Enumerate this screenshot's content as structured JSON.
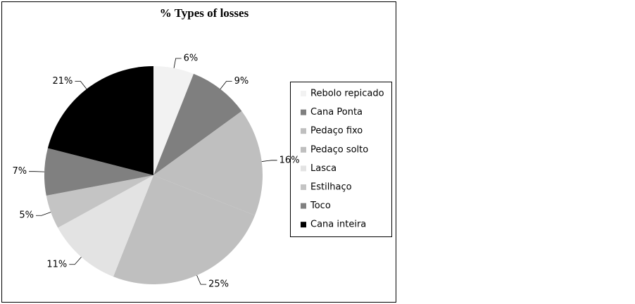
{
  "chart_data": {
    "type": "pie",
    "title": "% Types of losses",
    "categories": [
      "Rebolo repicado",
      "Cana Ponta",
      "Pedaço fixo",
      "Pedaço solto",
      "Lasca",
      "Estilhaço",
      "Toco",
      "Cana inteira"
    ],
    "values": [
      6,
      9,
      16,
      25,
      11,
      5,
      7,
      21
    ],
    "value_labels": [
      "6%",
      "9%",
      "16%",
      "25%",
      "11%",
      "5%",
      "7%",
      "21%"
    ],
    "colors": [
      "#f2f2f2",
      "#7f7f7f",
      "#bfbfbf",
      "#bfbfbf",
      "#e3e3e3",
      "#c4c4c4",
      "#808080",
      "#000000"
    ],
    "legend": "right"
  }
}
